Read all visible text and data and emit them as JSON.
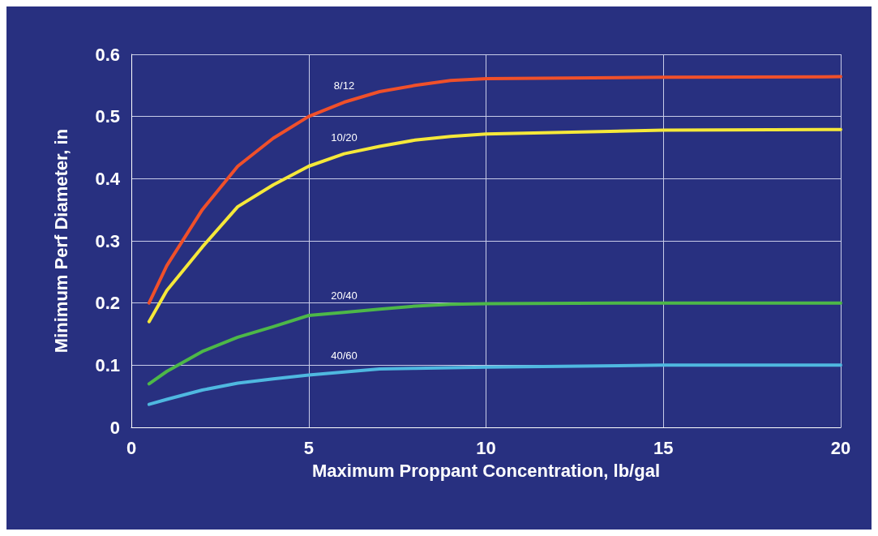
{
  "chart_data": {
    "type": "line",
    "xlabel": "Maximum Proppant Concentration, lb/gal",
    "ylabel": "Minimum Perf Diameter, in",
    "xlim": [
      0,
      20
    ],
    "xticks": [
      0,
      5,
      10,
      15,
      20
    ],
    "ylim": [
      0,
      0.6
    ],
    "yticks": [
      0,
      0.1,
      0.2,
      0.3,
      0.4,
      0.5,
      0.6
    ],
    "grid": true,
    "legend": false,
    "marker": "none",
    "line_style": "solid",
    "series": [
      {
        "name": "8/12",
        "color": "#f0502a",
        "x": [
          0.5,
          1,
          2,
          3,
          4,
          5,
          6,
          7,
          8,
          9,
          10,
          15,
          20
        ],
        "values": [
          0.2,
          0.26,
          0.35,
          0.42,
          0.465,
          0.5,
          0.523,
          0.54,
          0.55,
          0.558,
          0.561,
          0.563,
          0.564
        ]
      },
      {
        "name": "10/20",
        "color": "#f5e83a",
        "x": [
          0.5,
          1,
          2,
          3,
          4,
          5,
          6,
          7,
          8,
          9,
          10,
          15,
          20
        ],
        "values": [
          0.17,
          0.22,
          0.29,
          0.355,
          0.39,
          0.42,
          0.44,
          0.452,
          0.462,
          0.468,
          0.472,
          0.478,
          0.479
        ]
      },
      {
        "name": "20/40",
        "color": "#4db848",
        "x": [
          0.5,
          1,
          2,
          3,
          4,
          5,
          6,
          7,
          8,
          9,
          10,
          15,
          20
        ],
        "values": [
          0.07,
          0.09,
          0.122,
          0.145,
          0.162,
          0.18,
          0.185,
          0.19,
          0.195,
          0.198,
          0.199,
          0.2,
          0.2
        ]
      },
      {
        "name": "40/60",
        "color": "#4fb8e0",
        "x": [
          0.5,
          1,
          2,
          3,
          4,
          5,
          6,
          7,
          8,
          10,
          15,
          20
        ],
        "values": [
          0.037,
          0.045,
          0.06,
          0.071,
          0.078,
          0.084,
          0.089,
          0.094,
          0.095,
          0.097,
          0.1,
          0.1
        ]
      }
    ]
  }
}
